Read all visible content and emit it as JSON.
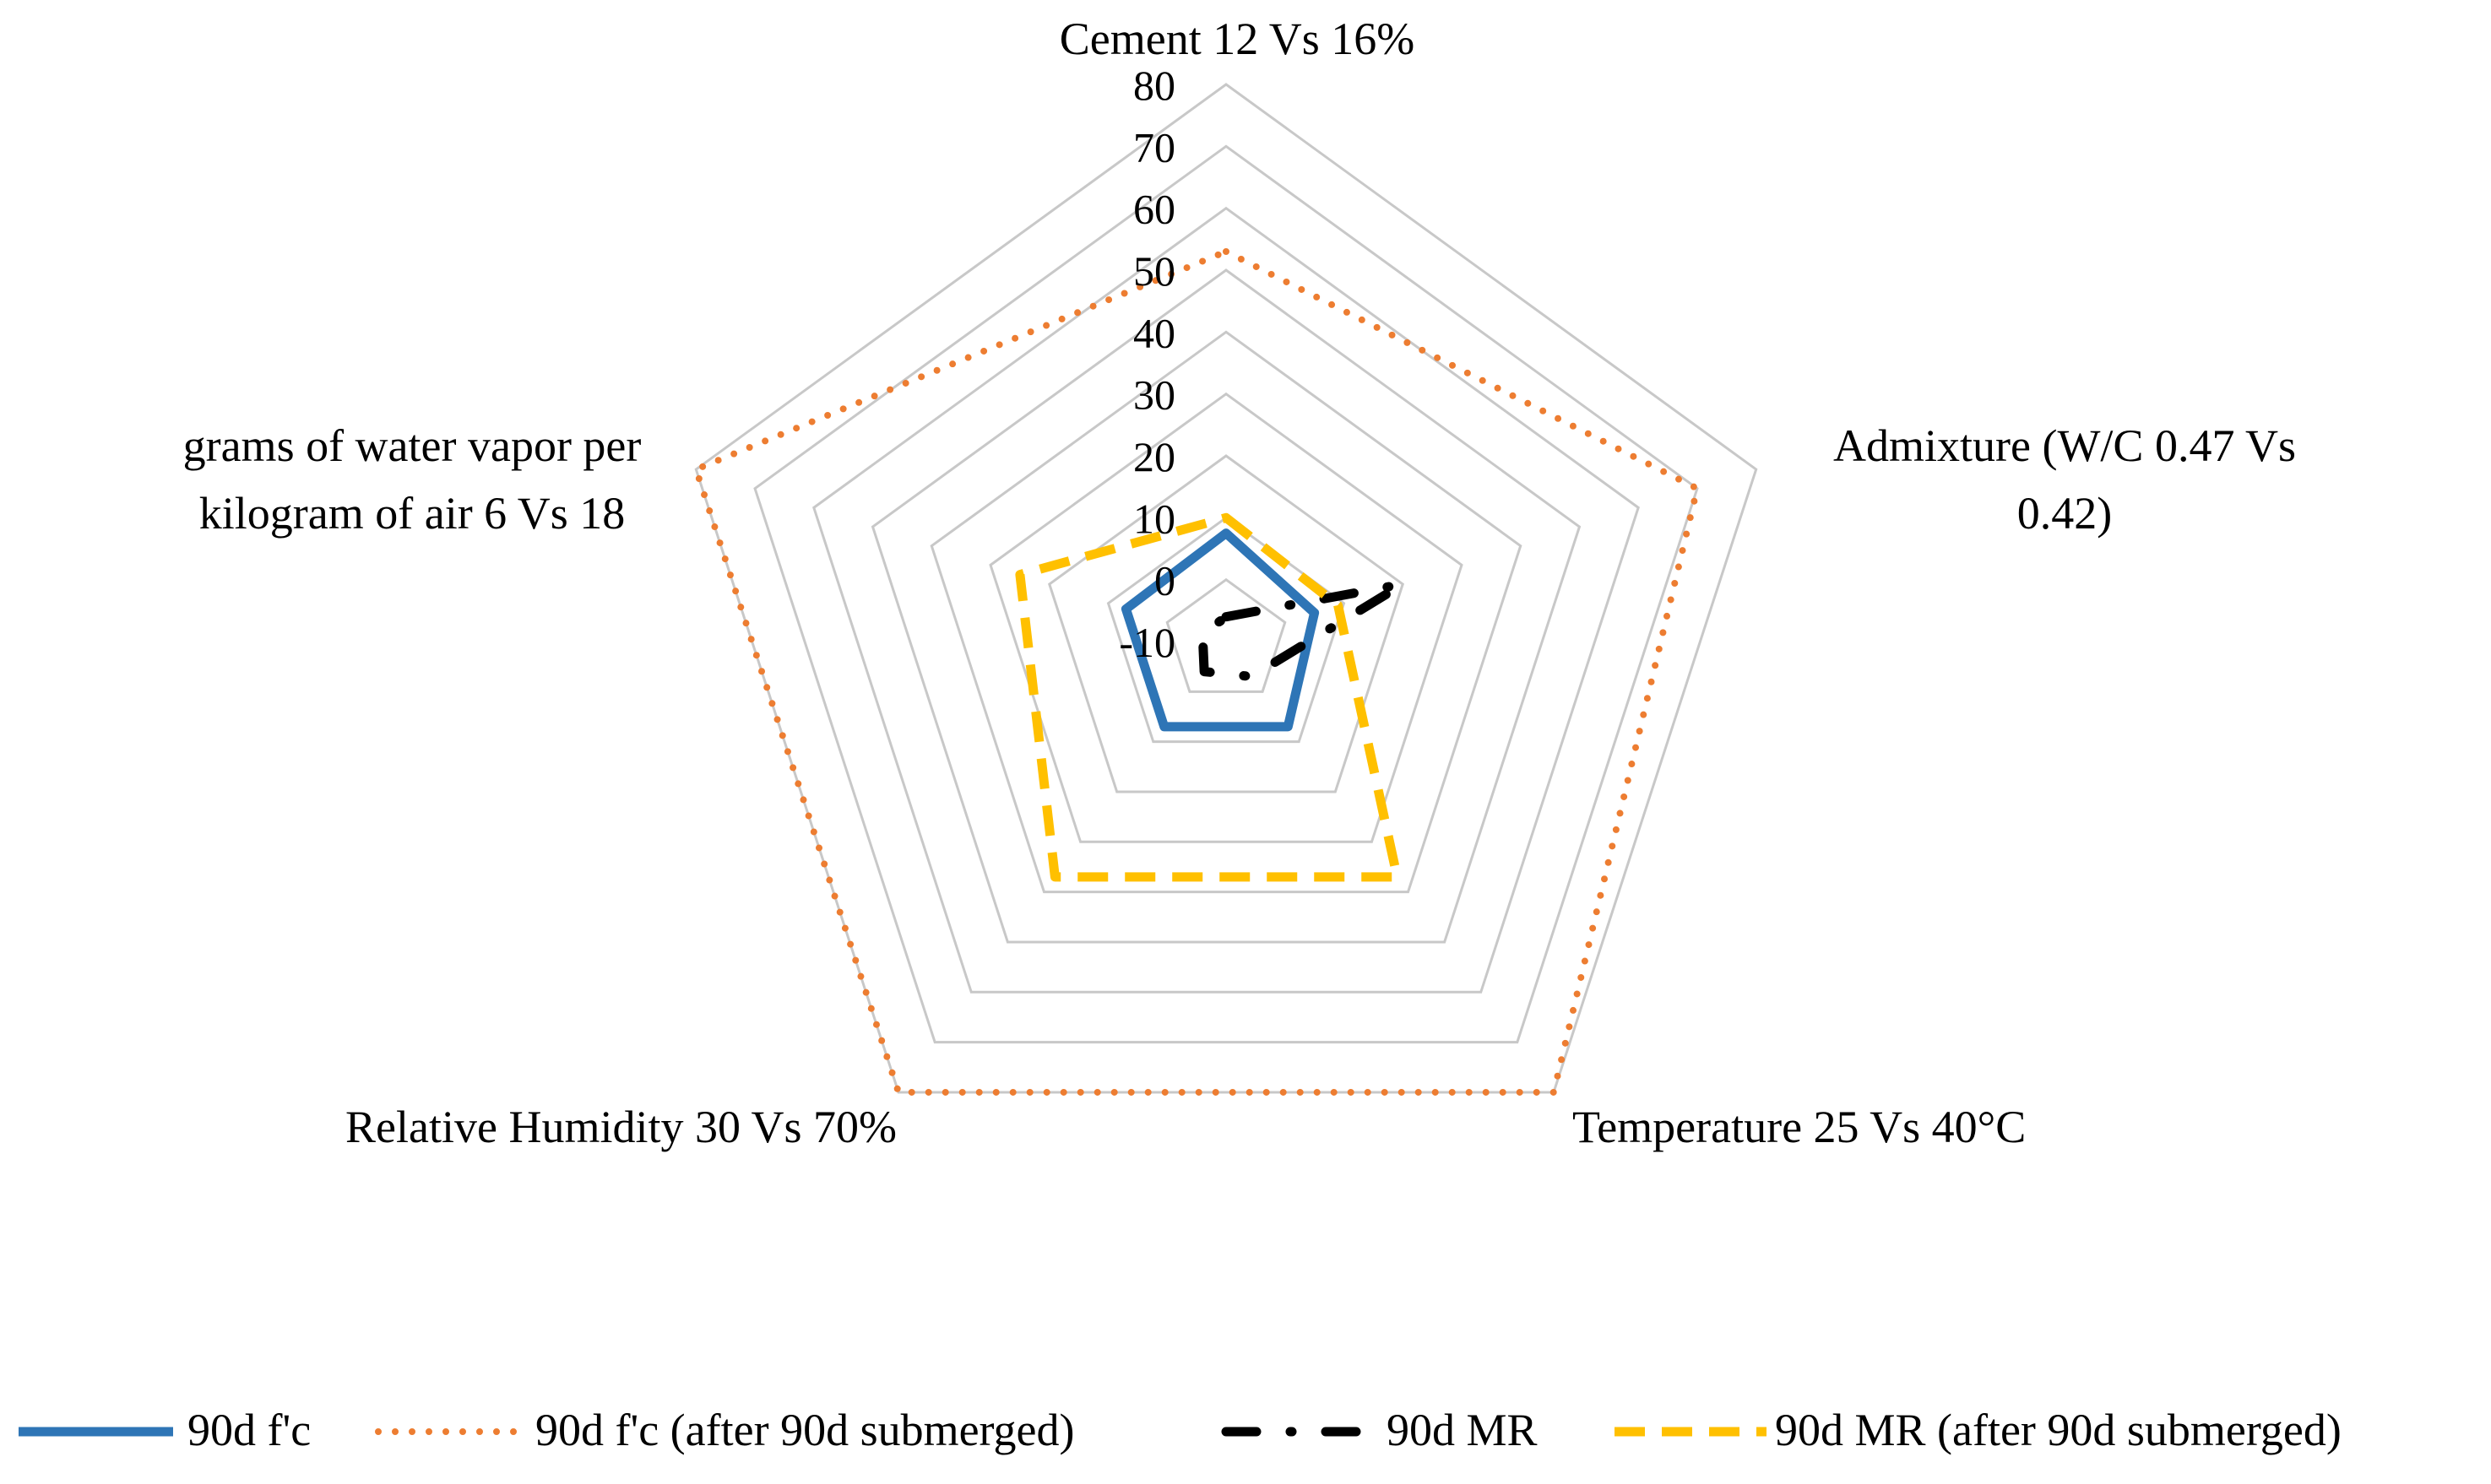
{
  "chart_data": {
    "type": "radar",
    "title": "",
    "axes": [
      [
        "Cement 12 Vs 16%"
      ],
      [
        "Admixture (W/C 0.47 Vs",
        "0.42)"
      ],
      [
        "Temperature 25 Vs 40°C"
      ],
      [
        "Relative Humidity 30 Vs 70%"
      ],
      [
        "grams of water vapor per",
        "kilogram of air 6 Vs 18"
      ]
    ],
    "rlim": [
      -10,
      80
    ],
    "ticks": [
      80,
      70,
      60,
      50,
      40,
      30,
      20,
      10,
      0,
      -10
    ],
    "grid": true,
    "legend_position": "bottom",
    "series": [
      {
        "name": "90d f'c",
        "values": [
          7.5,
          5,
          7,
          7,
          7
        ],
        "color": "#2E75B6",
        "dash": "solid"
      },
      {
        "name": "90d f'c (after 90d submerged)",
        "values": [
          53,
          70,
          80,
          80,
          80
        ],
        "color": "#ED7D31",
        "dash": "dotted"
      },
      {
        "name": "90d MR",
        "values": [
          -6,
          20,
          -3,
          -4,
          -6
        ],
        "color": "#000000",
        "dash": "dashdot"
      },
      {
        "name": "90d MR (after 90d submerged)",
        "values": [
          10,
          9,
          37,
          37,
          25
        ],
        "color": "#FFC000",
        "dash": "dashed"
      }
    ]
  }
}
